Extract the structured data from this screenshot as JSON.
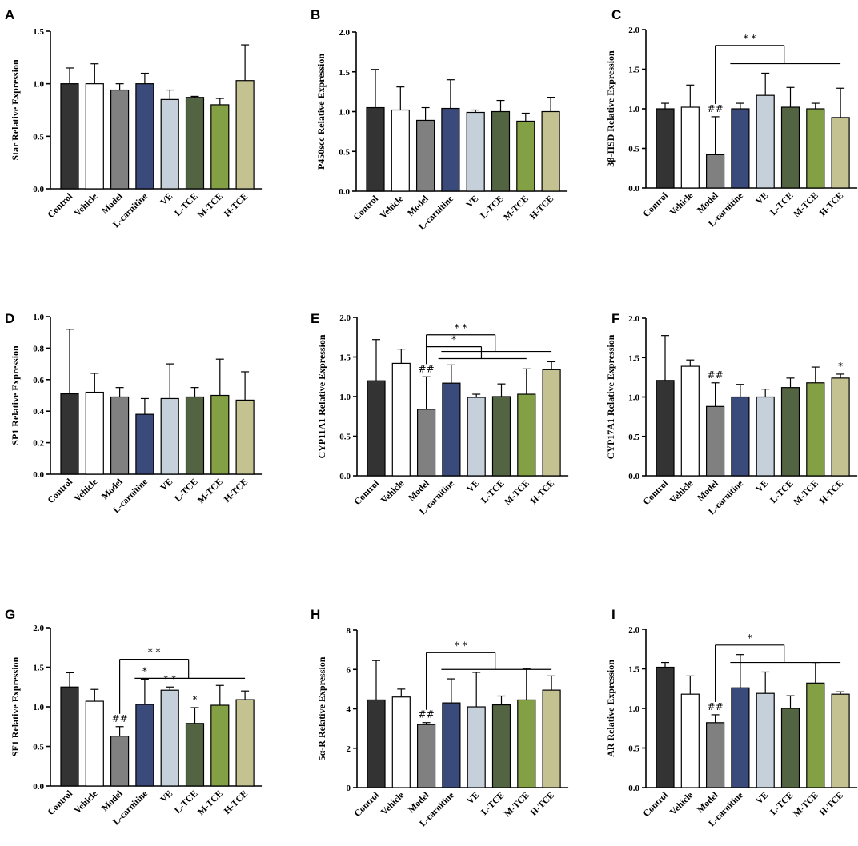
{
  "chart_data": [
    {
      "letter": "A",
      "type": "bar",
      "ylabel": "Star Relative Expression",
      "ylim": [
        0,
        1.5
      ],
      "ticks": [
        "0.0",
        "0.5",
        "1.0",
        "1.5"
      ],
      "categories": [
        "Control",
        "Vehicle",
        "Model",
        "L-carnitine",
        "VE",
        "L-TCE",
        "M-TCE",
        "H-TCE"
      ],
      "values": [
        1.0,
        1.0,
        0.94,
        1.0,
        0.85,
        0.87,
        0.8,
        1.03
      ],
      "errors": [
        0.15,
        0.19,
        0.06,
        0.1,
        0.09,
        0.01,
        0.06,
        0.34
      ],
      "marks": [],
      "brackets": []
    },
    {
      "letter": "B",
      "type": "bar",
      "ylabel": "P450scc Relative Expression",
      "ylim": [
        0,
        2.0
      ],
      "ticks": [
        "0.0",
        "0.5",
        "1.0",
        "1.5",
        "2.0"
      ],
      "categories": [
        "Control",
        "Vehicle",
        "Model",
        "L-carnitine",
        "VE",
        "L-TCE",
        "M-TCE",
        "H-TCE"
      ],
      "values": [
        1.05,
        1.02,
        0.89,
        1.04,
        0.99,
        1.0,
        0.88,
        1.0
      ],
      "errors": [
        0.48,
        0.29,
        0.16,
        0.36,
        0.03,
        0.14,
        0.1,
        0.18
      ],
      "marks": [],
      "brackets": []
    },
    {
      "letter": "C",
      "type": "bar",
      "ylabel": "3β-HSD Relative Expression",
      "ylim": [
        0,
        2.0
      ],
      "ticks": [
        "0.0",
        "0.5",
        "1.0",
        "1.5",
        "2.0"
      ],
      "categories": [
        "Control",
        "Vehicle",
        "Model",
        "L-carnitine",
        "VE",
        "L-TCE",
        "M-TCE",
        "H-TCE"
      ],
      "values": [
        1.0,
        1.02,
        0.42,
        1.0,
        1.17,
        1.02,
        1.0,
        0.89
      ],
      "errors": [
        0.07,
        0.28,
        0.48,
        0.07,
        0.28,
        0.25,
        0.07,
        0.37
      ],
      "marks": [
        {
          "index": 2,
          "text": "##"
        }
      ],
      "brackets": [
        {
          "label": "* *",
          "from": 2,
          "to": 7,
          "y": 1.8,
          "y2": 1.57
        }
      ]
    },
    {
      "letter": "D",
      "type": "bar",
      "ylabel": "SP1 Relative Expression",
      "ylim": [
        0,
        1.0
      ],
      "ticks": [
        "0.0",
        "0.2",
        "0.4",
        "0.6",
        "0.8",
        "1.0"
      ],
      "categories": [
        "Control",
        "Vehicle",
        "Model",
        "L-carnitine",
        "VE",
        "L-TCE",
        "M-TCE",
        "H-TCE"
      ],
      "values": [
        0.51,
        0.52,
        0.49,
        0.38,
        0.48,
        0.49,
        0.5,
        0.47
      ],
      "errors": [
        0.41,
        0.12,
        0.06,
        0.1,
        0.22,
        0.06,
        0.23,
        0.18
      ],
      "marks": [],
      "brackets": []
    },
    {
      "letter": "E",
      "type": "bar",
      "ylabel": "CYP11A1 Relative Expression",
      "ylim": [
        0,
        2.0
      ],
      "ticks": [
        "0.0",
        "0.5",
        "1.0",
        "1.5",
        "2.0"
      ],
      "categories": [
        "Control",
        "Vehicle",
        "Model",
        "L-carnitine",
        "VE",
        "L-TCE",
        "M-TCE",
        "H-TCE"
      ],
      "values": [
        1.2,
        1.42,
        0.84,
        1.17,
        0.99,
        1.0,
        1.03,
        1.34
      ],
      "errors": [
        0.52,
        0.18,
        0.41,
        0.23,
        0.04,
        0.16,
        0.32,
        0.1
      ],
      "marks": [
        {
          "index": 2,
          "text": "##"
        }
      ],
      "brackets": [
        {
          "label": "* *",
          "from": 2,
          "to": 7,
          "y": 1.78,
          "y2": 1.57
        },
        {
          "label": "*",
          "from": 2,
          "to": 6,
          "y": 1.63,
          "y2": 1.48
        }
      ]
    },
    {
      "letter": "F",
      "type": "bar",
      "ylabel": "CYP17A1 Relative Expression",
      "ylim": [
        0,
        2.0
      ],
      "ticks": [
        "0.0",
        "0.5",
        "1.0",
        "1.5",
        "2.0"
      ],
      "categories": [
        "Control",
        "Vehicle",
        "Model",
        "L-carnitine",
        "VE",
        "L-TCE",
        "M-TCE",
        "H-TCE"
      ],
      "values": [
        1.21,
        1.39,
        0.88,
        1.0,
        1.0,
        1.12,
        1.18,
        1.24
      ],
      "errors": [
        0.57,
        0.08,
        0.3,
        0.16,
        0.1,
        0.12,
        0.2,
        0.05
      ],
      "marks": [
        {
          "index": 2,
          "text": "##"
        },
        {
          "index": 7,
          "text": "*"
        }
      ],
      "brackets": []
    },
    {
      "letter": "G",
      "type": "bar",
      "ylabel": "SF1 Relative Expression",
      "ylim": [
        0,
        2.0
      ],
      "ticks": [
        "0.0",
        "0.5",
        "1.0",
        "1.5",
        "2.0"
      ],
      "categories": [
        "Control",
        "Vehicle",
        "Model",
        "L-carnitine",
        "VE",
        "L-TCE",
        "M-TCE",
        "H-TCE"
      ],
      "values": [
        1.25,
        1.07,
        0.63,
        1.03,
        1.21,
        0.79,
        1.02,
        1.09
      ],
      "errors": [
        0.18,
        0.15,
        0.12,
        0.32,
        0.04,
        0.2,
        0.25,
        0.11
      ],
      "marks": [
        {
          "index": 2,
          "text": "##"
        },
        {
          "index": 3,
          "text": "*"
        },
        {
          "index": 4,
          "text": "* *"
        },
        {
          "index": 5,
          "text": "*"
        }
      ],
      "brackets": [
        {
          "label": "* *",
          "from": 2,
          "to": 7,
          "y": 1.6,
          "y2": 1.36
        }
      ]
    },
    {
      "letter": "H",
      "type": "bar",
      "ylabel": "5α-R Relative Expression",
      "ylim": [
        0,
        8
      ],
      "ticks": [
        "0",
        "2",
        "4",
        "6",
        "8"
      ],
      "categories": [
        "Control",
        "Vehicle",
        "Model",
        "L-carnitine",
        "VE",
        "L-TCE",
        "M-TCE",
        "H-TCE"
      ],
      "values": [
        4.45,
        4.6,
        3.2,
        4.3,
        4.1,
        4.2,
        4.45,
        4.95
      ],
      "errors": [
        2.0,
        0.4,
        0.1,
        1.22,
        1.75,
        0.45,
        1.6,
        0.72
      ],
      "marks": [
        {
          "index": 2,
          "text": "##"
        }
      ],
      "brackets": [
        {
          "label": "* *",
          "from": 2,
          "to": 7,
          "y": 6.85,
          "y2": 6.0
        }
      ]
    },
    {
      "letter": "I",
      "type": "bar",
      "ylabel": "AR Relative Expression",
      "ylim": [
        0,
        2.0
      ],
      "ticks": [
        "0.0",
        "0.5",
        "1.0",
        "1.5",
        "2.0"
      ],
      "categories": [
        "Control",
        "Vehicle",
        "Model",
        "L-carnitine",
        "VE",
        "L-TCE",
        "M-TCE",
        "H-TCE"
      ],
      "values": [
        1.52,
        1.18,
        0.82,
        1.26,
        1.19,
        1.0,
        1.32,
        1.18
      ],
      "errors": [
        0.06,
        0.23,
        0.1,
        0.42,
        0.27,
        0.16,
        0.26,
        0.03
      ],
      "marks": [
        {
          "index": 2,
          "text": "##"
        }
      ],
      "brackets": [
        {
          "label": "*",
          "from": 2,
          "to": 7,
          "y": 1.8,
          "y2": 1.58
        }
      ]
    }
  ],
  "colors": [
    "#333333",
    "#ffffff",
    "#808080",
    "#3a4a7a",
    "#c5d0da",
    "#536442",
    "#83a045",
    "#c4c290"
  ]
}
